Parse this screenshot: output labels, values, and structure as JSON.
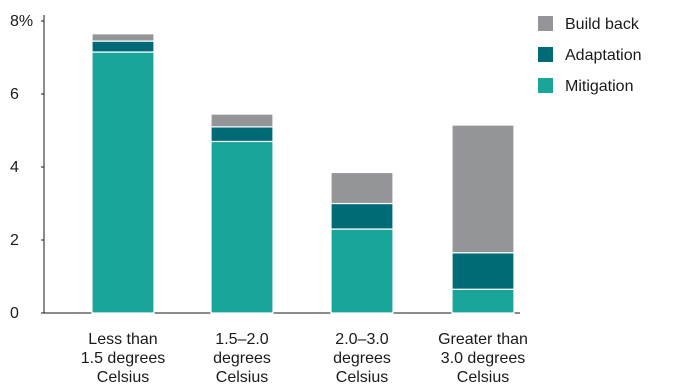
{
  "chart_data": {
    "type": "bar",
    "stacked": true,
    "categories": [
      [
        "Less than",
        "1.5 degrees",
        "Celsius"
      ],
      [
        "1.5–2.0",
        "degrees",
        "Celsius"
      ],
      [
        "2.0–3.0",
        "degrees",
        "Celsius"
      ],
      [
        "Greater than",
        "3.0 degrees",
        "Celsius"
      ]
    ],
    "series": [
      {
        "name": "Mitigation",
        "values": [
          7.15,
          4.7,
          2.3,
          0.65
        ],
        "color": "#1aa59a"
      },
      {
        "name": "Adaptation",
        "values": [
          0.3,
          0.4,
          0.7,
          1.0
        ],
        "color": "#006b77"
      },
      {
        "name": "Build back",
        "values": [
          0.2,
          0.35,
          0.85,
          3.5
        ],
        "color": "#939598"
      }
    ],
    "legend_order": [
      "Build back",
      "Adaptation",
      "Mitigation"
    ],
    "legend_position": "top-right",
    "ylim": [
      0,
      8
    ],
    "yticks": [
      {
        "value": 0,
        "label": "0"
      },
      {
        "value": 2,
        "label": "2"
      },
      {
        "value": 4,
        "label": "4"
      },
      {
        "value": 6,
        "label": "6"
      },
      {
        "value": 8,
        "label": "8%"
      }
    ],
    "grid": false,
    "title": "",
    "xlabel": "",
    "ylabel": ""
  }
}
